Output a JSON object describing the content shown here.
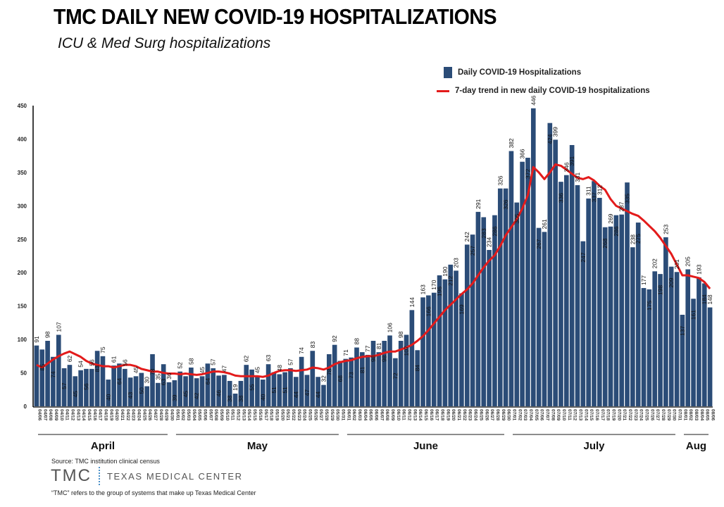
{
  "header": {
    "title": "TMC DAILY NEW COVID-19 HOSPITALIZATIONS",
    "subtitle": "ICU & Med Surg hospitalizations"
  },
  "legend": {
    "bar_label": "Daily COVID-19 Hospitalizations",
    "line_label": "7-day trend in new daily COVID-19 hospitalizations"
  },
  "footer": {
    "source": "Source: TMC institution clinical census",
    "logo_short": "TMC",
    "logo_full": "TEXAS MEDICAL CENTER",
    "note": "“TMC” refers to the group of systems that make up Texas Medical Center"
  },
  "colors": {
    "bar": "#2b4c77",
    "trend": "#e31b1b",
    "axis": "#000000"
  },
  "chart_data": {
    "type": "bar",
    "title": "TMC DAILY NEW COVID-19 HOSPITALIZATIONS",
    "subtitle": "ICU & Med Surg hospitalizations",
    "xlabel": "",
    "ylabel": "",
    "ylim": [
      0,
      450
    ],
    "yticks": [
      0,
      50,
      100,
      150,
      200,
      250,
      300,
      350,
      400,
      450
    ],
    "grid": false,
    "legend_position": "top-right",
    "months": [
      {
        "label": "April",
        "start": "04/06",
        "end": "04/30"
      },
      {
        "label": "May",
        "start": "05/01",
        "end": "05/31"
      },
      {
        "label": "June",
        "start": "06/01",
        "end": "06/30"
      },
      {
        "label": "July",
        "start": "07/01",
        "end": "07/31"
      },
      {
        "label": "Aug",
        "start": "08/01",
        "end": "08/06"
      }
    ],
    "categories": [
      "04/06",
      "04/07",
      "04/08",
      "04/09",
      "04/10",
      "04/11",
      "04/12",
      "04/13",
      "04/14",
      "04/15",
      "04/16",
      "04/17",
      "04/18",
      "04/19",
      "04/20",
      "04/21",
      "04/22",
      "04/23",
      "04/24",
      "04/25",
      "04/26",
      "04/27",
      "04/28",
      "04/29",
      "04/30",
      "05/01",
      "05/02",
      "05/03",
      "05/04",
      "05/05",
      "05/06",
      "05/07",
      "05/08",
      "05/09",
      "05/10",
      "05/11",
      "05/12",
      "05/13",
      "05/14",
      "05/15",
      "05/16",
      "05/17",
      "05/18",
      "05/19",
      "05/20",
      "05/21",
      "05/22",
      "05/23",
      "05/24",
      "05/25",
      "05/26",
      "05/27",
      "05/28",
      "05/29",
      "05/30",
      "05/31",
      "06/01",
      "06/02",
      "06/03",
      "06/04",
      "06/05",
      "06/06",
      "06/07",
      "06/08",
      "06/09",
      "06/10",
      "06/11",
      "06/12",
      "06/13",
      "06/14",
      "06/15",
      "06/16",
      "06/17",
      "06/18",
      "06/19",
      "06/20",
      "06/21",
      "06/22",
      "06/23",
      "06/24",
      "06/25",
      "06/26",
      "06/27",
      "06/28",
      "06/29",
      "06/30",
      "07/01",
      "07/02",
      "07/03",
      "07/04",
      "07/05",
      "07/06",
      "07/07",
      "07/08",
      "07/09",
      "07/10",
      "07/11",
      "07/12",
      "07/13",
      "07/14",
      "07/15",
      "07/16",
      "07/17",
      "07/18",
      "07/19",
      "07/20",
      "07/21",
      "07/22",
      "07/23",
      "07/24",
      "07/25",
      "07/26",
      "07/27",
      "07/28",
      "07/29",
      "07/30",
      "07/31",
      "08/01",
      "08/02",
      "08/03",
      "08/04",
      "08/05",
      "08/06"
    ],
    "series": [
      {
        "name": "Daily COVID-19 Hospitalizations",
        "type": "bar",
        "values": [
          91,
          85,
          98,
          74,
          107,
          57,
          62,
          45,
          54,
          56,
          56,
          83,
          75,
          40,
          61,
          64,
          56,
          43,
          45,
          50,
          30,
          78,
          35,
          63,
          36,
          39,
          52,
          45,
          58,
          42,
          45,
          64,
          57,
          46,
          47,
          38,
          19,
          38,
          62,
          55,
          45,
          40,
          63,
          51,
          48,
          51,
          57,
          44,
          74,
          47,
          83,
          44,
          32,
          78,
          92,
          68,
          71,
          73,
          88,
          81,
          77,
          98,
          81,
          98,
          106,
          72,
          98,
          107,
          144,
          84,
          163,
          166,
          170,
          196,
          190,
          212,
          203,
          169,
          242,
          257,
          291,
          283,
          234,
          286,
          326,
          326,
          382,
          305,
          366,
          372,
          446,
          267,
          261,
          424,
          399,
          336,
          346,
          391,
          331,
          247,
          311,
          337,
          312,
          268,
          269,
          286,
          287,
          335,
          238,
          275,
          177,
          175,
          202,
          198,
          253,
          209,
          201,
          137,
          205,
          161,
          193,
          184,
          148
        ]
      },
      {
        "name": "7-day trend in new daily COVID-19 hospitalizations",
        "type": "line",
        "values": [
          62,
          58,
          64,
          70,
          75,
          79,
          82,
          78,
          74,
          68,
          64,
          62,
          60,
          60,
          58,
          60,
          62,
          62,
          60,
          56,
          54,
          52,
          52,
          50,
          49,
          49,
          48,
          49,
          48,
          47,
          48,
          50,
          52,
          52,
          51,
          49,
          46,
          45,
          45,
          45,
          45,
          44,
          46,
          50,
          53,
          54,
          54,
          53,
          54,
          55,
          58,
          57,
          55,
          58,
          63,
          66,
          68,
          69,
          72,
          74,
          75,
          75,
          77,
          80,
          82,
          82,
          85,
          88,
          92,
          98,
          105,
          114,
          124,
          134,
          144,
          152,
          160,
          168,
          175,
          184,
          196,
          208,
          218,
          226,
          240,
          256,
          268,
          280,
          296,
          316,
          358,
          350,
          340,
          350,
          362,
          360,
          354,
          348,
          342,
          340,
          343,
          338,
          330,
          324,
          310,
          300,
          296,
          292,
          288,
          285,
          278,
          270,
          262,
          252,
          240,
          228,
          212,
          196,
          196,
          194,
          192,
          186,
          176
        ]
      }
    ]
  }
}
